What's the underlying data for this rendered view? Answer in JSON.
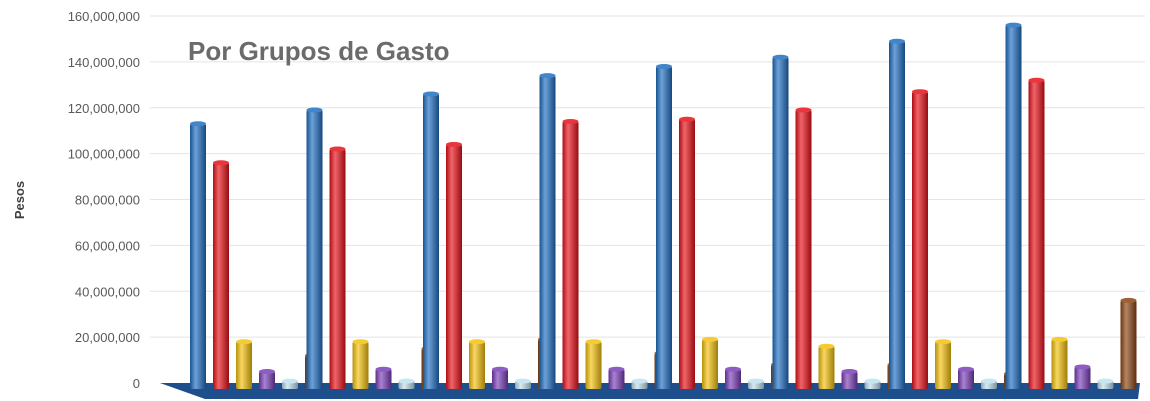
{
  "chart_data": {
    "type": "bar",
    "title": "Por Grupos de Gasto",
    "ylabel": "Pesos",
    "xlabel": "",
    "ylim": [
      0,
      160000000
    ],
    "yticks": [
      "0",
      "20,000,000",
      "40,000,000",
      "60,000,000",
      "80,000,000",
      "100,000,000",
      "120,000,000",
      "140,000,000",
      "160,000,000"
    ],
    "grid": true,
    "legend": "none",
    "categories": [
      "",
      "",
      "",
      "",
      "",
      "",
      "",
      ""
    ],
    "series": [
      {
        "color": "#1f6fc2",
        "values": [
          113000000,
          119000000,
          126000000,
          134000000,
          138000000,
          142000000,
          149000000,
          156000000
        ]
      },
      {
        "color": "#e8111a",
        "values": [
          96000000,
          102000000,
          104000000,
          114000000,
          115000000,
          119000000,
          127000000,
          132000000
        ]
      },
      {
        "color": "#f4c20d",
        "values": [
          18000000,
          18000000,
          18000000,
          18000000,
          19000000,
          16000000,
          18000000,
          19000000
        ]
      },
      {
        "color": "#7a3fb8",
        "values": [
          5000000,
          6000000,
          6000000,
          6000000,
          6000000,
          5000000,
          6000000,
          7000000
        ]
      },
      {
        "color": "#bfe0ee",
        "values": [
          800000,
          800000,
          800000,
          800000,
          800000,
          800000,
          800000,
          800000
        ]
      },
      {
        "color": "#8b4513",
        "values": [
          12000000,
          15000000,
          19000000,
          13000000,
          8000000,
          8000000,
          4000000,
          36000000
        ]
      }
    ]
  }
}
